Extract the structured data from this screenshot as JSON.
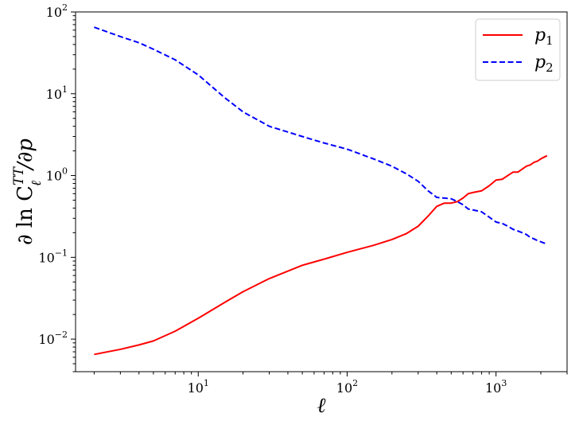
{
  "chart_data": {
    "type": "line",
    "xlabel": "ℓ",
    "ylabel": "∂ ln C",
    "ylabel_sup": "TT",
    "ylabel_sub": "ℓ",
    "ylabel_tail": "/∂p",
    "x_scale": "log",
    "y_scale": "log",
    "xlim": [
      1.5,
      3000
    ],
    "ylim": [
      0.004,
      100
    ],
    "grid": false,
    "legend_position": "top-right",
    "x_ticks": [
      {
        "value": 10,
        "base": "10",
        "exp": "1"
      },
      {
        "value": 100,
        "base": "10",
        "exp": "2"
      },
      {
        "value": 1000,
        "base": "10",
        "exp": "3"
      }
    ],
    "y_ticks": [
      {
        "value": 0.01,
        "base": "10",
        "exp": "−2"
      },
      {
        "value": 0.1,
        "base": "10",
        "exp": "−1"
      },
      {
        "value": 1,
        "base": "10",
        "exp": "0"
      },
      {
        "value": 10,
        "base": "10",
        "exp": "1"
      },
      {
        "value": 100,
        "base": "10",
        "exp": "2"
      }
    ],
    "series": [
      {
        "name": "p",
        "name_sub": "1",
        "color": "#ff0000",
        "style": "solid",
        "x": [
          2,
          3,
          4,
          5,
          7,
          10,
          15,
          20,
          30,
          50,
          70,
          100,
          150,
          200,
          250,
          300,
          350,
          400,
          450,
          500,
          550,
          600,
          650,
          700,
          800,
          900,
          1000,
          1100,
          1200,
          1300,
          1400,
          1500,
          1600,
          1700,
          1800,
          1900,
          2000,
          2200
        ],
        "y": [
          0.0065,
          0.0075,
          0.0085,
          0.0095,
          0.0125,
          0.018,
          0.028,
          0.038,
          0.055,
          0.08,
          0.095,
          0.115,
          0.14,
          0.165,
          0.195,
          0.24,
          0.32,
          0.42,
          0.46,
          0.46,
          0.48,
          0.53,
          0.6,
          0.62,
          0.65,
          0.75,
          0.88,
          0.9,
          1.0,
          1.1,
          1.1,
          1.2,
          1.3,
          1.35,
          1.45,
          1.5,
          1.6,
          1.75
        ]
      },
      {
        "name": "p",
        "name_sub": "2",
        "color": "#0000ff",
        "style": "dashed",
        "x": [
          2,
          3,
          4,
          5,
          7,
          10,
          15,
          20,
          30,
          50,
          70,
          100,
          150,
          200,
          250,
          300,
          350,
          400,
          450,
          500,
          550,
          600,
          650,
          700,
          800,
          900,
          1000,
          1100,
          1200,
          1300,
          1400,
          1500,
          1600,
          1700,
          1800,
          1900,
          2000,
          2200
        ],
        "y": [
          65,
          50,
          42,
          35,
          26,
          17,
          9,
          6,
          4,
          3,
          2.5,
          2.1,
          1.6,
          1.3,
          1.05,
          0.85,
          0.65,
          0.54,
          0.53,
          0.52,
          0.48,
          0.44,
          0.39,
          0.38,
          0.36,
          0.31,
          0.27,
          0.26,
          0.24,
          0.22,
          0.21,
          0.2,
          0.19,
          0.175,
          0.168,
          0.16,
          0.155,
          0.145
        ]
      }
    ]
  }
}
